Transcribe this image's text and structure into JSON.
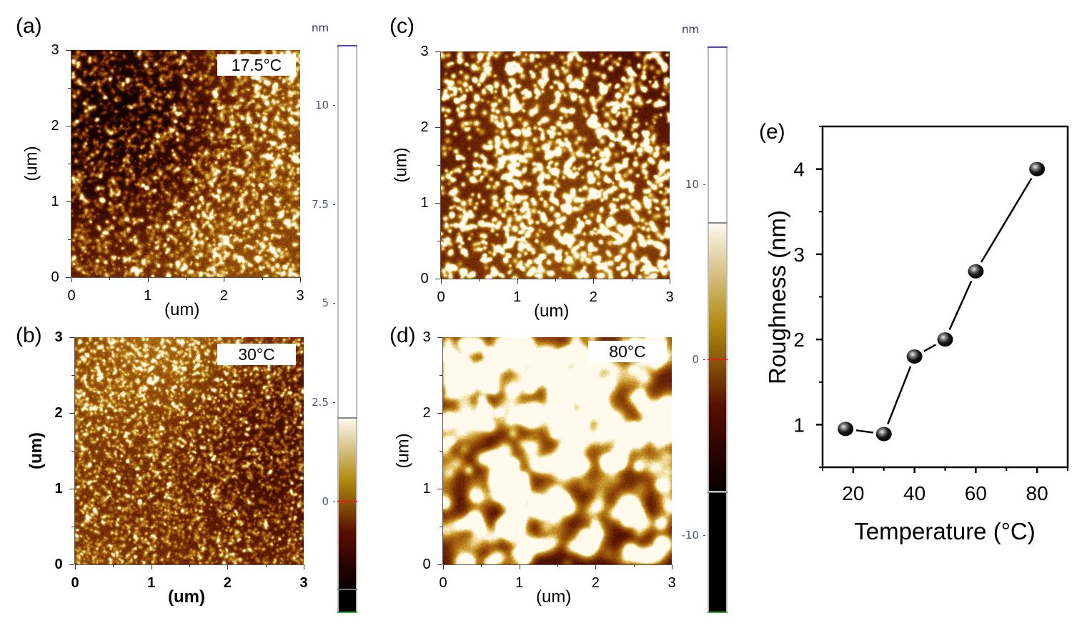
{
  "figure": {
    "panels": [
      {
        "id": "a",
        "letter": "(a)",
        "temperature_label": "17.5°C",
        "x_ticks": [
          "0",
          "1",
          "2",
          "3"
        ],
        "y_ticks": [
          "0",
          "1",
          "2",
          "3"
        ],
        "x_title": "(um)",
        "y_title": "(um)",
        "bold_axes": false,
        "texture": "fine"
      },
      {
        "id": "b",
        "letter": "(b)",
        "temperature_label": "30°C",
        "x_ticks": [
          "0",
          "1",
          "2",
          "3"
        ],
        "y_ticks": [
          "0",
          "1",
          "2",
          "3"
        ],
        "x_title": "(um)",
        "y_title": "(um)",
        "bold_axes": true,
        "texture": "finer"
      },
      {
        "id": "c",
        "letter": "(c)",
        "temperature_label": "",
        "x_ticks": [
          "0",
          "1",
          "2",
          "3"
        ],
        "y_ticks": [
          "0",
          "1",
          "2",
          "3"
        ],
        "x_title": "(um)",
        "y_title": "(um)",
        "bold_axes": false,
        "texture": "dots"
      },
      {
        "id": "d",
        "letter": "(d)",
        "temperature_label": "80°C",
        "x_ticks": [
          "0",
          "1",
          "2",
          "3"
        ],
        "y_ticks": [
          "0",
          "1",
          "2",
          "3"
        ],
        "x_title": "(um)",
        "y_title": "(um)",
        "bold_axes": false,
        "texture": "grains"
      }
    ],
    "colorbars": [
      {
        "unit": "nm",
        "ticks": [
          "10",
          "7.5",
          "5",
          "2.5",
          "0"
        ],
        "range": [
          -2.8,
          11.5
        ],
        "gradient_range": [
          -2.2,
          2.1
        ]
      },
      {
        "unit": "nm",
        "ticks": [
          "10",
          "0",
          "-10"
        ],
        "range": [
          -14.4,
          17.8
        ],
        "gradient_range": [
          -7.5,
          7.8
        ]
      }
    ],
    "colors": {
      "afm_dark": "#1a0500",
      "afm_mid": "#8a4a05",
      "afm_gold": "#b98b10",
      "afm_light": "#fff8e8",
      "zero_line": "#e02020",
      "top_line": "#4444dd",
      "bottom_line": "#33aa33"
    }
  },
  "chart_data": {
    "type": "line",
    "panel_letter": "(e)",
    "title": "",
    "xlabel": "Temperature (°C)",
    "ylabel": "Roughness (nm)",
    "xlim": [
      10,
      90
    ],
    "ylim": [
      0.5,
      4.5
    ],
    "x_ticks": [
      20,
      40,
      60,
      80
    ],
    "y_ticks": [
      1,
      2,
      3,
      4
    ],
    "grid": false,
    "legend": "none",
    "series": [
      {
        "name": "Roughness",
        "x": [
          17.5,
          30,
          40,
          50,
          60,
          80
        ],
        "y": [
          0.95,
          0.89,
          1.8,
          2.0,
          2.8,
          4.0
        ],
        "marker": "sphere",
        "color": "#000000"
      }
    ]
  }
}
